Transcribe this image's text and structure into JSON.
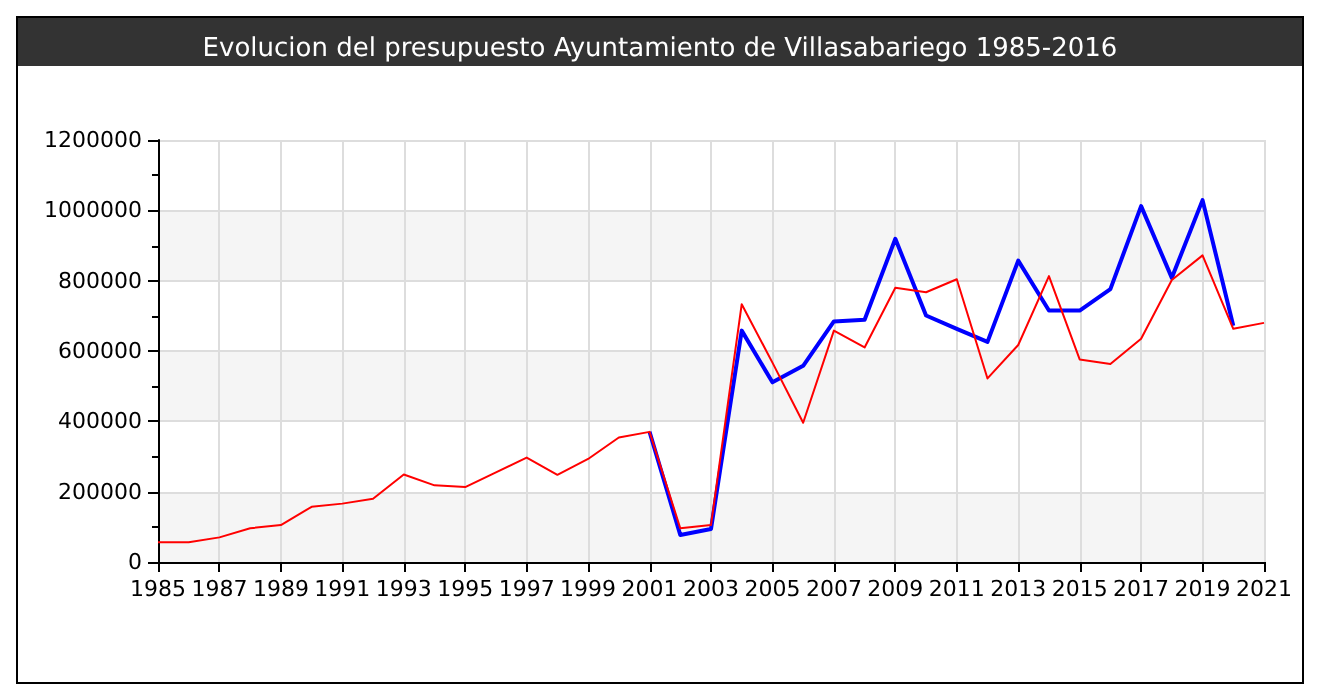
{
  "chart_data": {
    "type": "line",
    "title": "Evolucion del presupuesto Ayuntamiento de Villasabariego 1985-2016",
    "x": [
      1985,
      1986,
      1987,
      1988,
      1989,
      1990,
      1991,
      1992,
      1993,
      1994,
      1995,
      1996,
      1997,
      1998,
      1999,
      2000,
      2001,
      2002,
      2003,
      2004,
      2005,
      2006,
      2007,
      2008,
      2009,
      2010,
      2011,
      2012,
      2013,
      2014,
      2015,
      2016,
      2017,
      2018,
      2019,
      2020,
      2021
    ],
    "series": [
      {
        "color": "#0000ff",
        "values": [
          null,
          null,
          null,
          null,
          null,
          null,
          null,
          null,
          null,
          null,
          null,
          null,
          null,
          null,
          null,
          null,
          370000,
          77000,
          94000,
          658000,
          511000,
          558000,
          684000,
          689000,
          919000,
          701000,
          663000,
          626000,
          857000,
          715000,
          715000,
          776000,
          1012000,
          808000,
          1029000,
          672000,
          null
        ]
      },
      {
        "color": "#ff0000",
        "values": [
          56000,
          56000,
          70000,
          96000,
          105000,
          157000,
          166000,
          180000,
          249000,
          218000,
          213000,
          255000,
          297000,
          248000,
          293000,
          354000,
          370000,
          96000,
          105000,
          733000,
          567000,
          396000,
          658000,
          610000,
          780000,
          767000,
          804000,
          522000,
          617000,
          813000,
          576000,
          563000,
          635000,
          802000,
          872000,
          663000,
          680000
        ]
      }
    ],
    "xlim": [
      1985,
      2021
    ],
    "xticks": [
      1985,
      1987,
      1989,
      1991,
      1993,
      1995,
      1997,
      1999,
      2001,
      2003,
      2005,
      2007,
      2009,
      2011,
      2013,
      2015,
      2017,
      2019,
      2021
    ],
    "ylim": [
      0,
      1200000
    ],
    "yticks": [
      0,
      200000,
      400000,
      600000,
      800000,
      1000000,
      1200000
    ],
    "grid": true,
    "marker": "none",
    "line_style": "solid"
  }
}
